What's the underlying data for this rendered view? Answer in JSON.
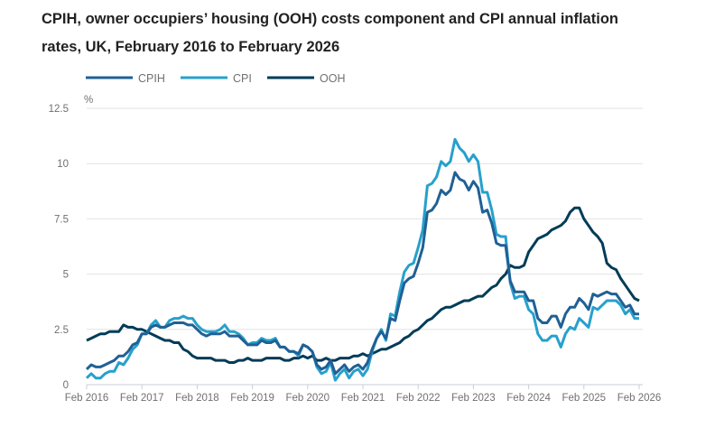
{
  "chart_data": {
    "type": "line",
    "title": "CPIH, owner occupiers’ housing (OOH) costs component and CPI annual inflation rates, UK, February 2016 to February 2026",
    "ylabel": "%",
    "xlabel": "",
    "ylim": [
      0,
      12.5
    ],
    "yticks": [
      "0",
      "2.5",
      "5",
      "7.5",
      "10",
      "12.5"
    ],
    "xticks": [
      "Feb 2016",
      "Feb 2017",
      "Feb 2018",
      "Feb 2019",
      "Feb 2020",
      "Feb 2021",
      "Feb 2022",
      "Feb 2023",
      "Feb 2024",
      "Feb 2025",
      "Feb 2026"
    ],
    "x_start": "Feb 2016",
    "x_end": "Feb 2026",
    "x_frequency": "monthly",
    "grid": true,
    "legend_position": "top-left",
    "series": [
      {
        "name": "CPIH",
        "color": "#206095",
        "values": [
          0.7,
          0.9,
          0.8,
          0.8,
          0.9,
          1.0,
          1.1,
          1.3,
          1.3,
          1.5,
          1.8,
          1.9,
          2.3,
          2.3,
          2.6,
          2.7,
          2.6,
          2.6,
          2.7,
          2.8,
          2.8,
          2.8,
          2.7,
          2.7,
          2.5,
          2.3,
          2.2,
          2.3,
          2.3,
          2.3,
          2.4,
          2.2,
          2.2,
          2.2,
          2.0,
          1.8,
          1.8,
          1.8,
          2.0,
          1.9,
          1.9,
          2.0,
          1.7,
          1.7,
          1.5,
          1.5,
          1.4,
          1.8,
          1.7,
          1.5,
          0.9,
          0.7,
          0.8,
          1.1,
          0.5,
          0.7,
          0.9,
          0.6,
          0.8,
          0.9,
          0.7,
          1.0,
          1.6,
          2.1,
          2.4,
          2.1,
          3.0,
          2.9,
          3.8,
          4.6,
          4.8,
          4.9,
          5.5,
          6.2,
          7.8,
          7.9,
          8.2,
          8.8,
          8.6,
          8.8,
          9.6,
          9.3,
          9.2,
          8.8,
          9.2,
          8.9,
          7.8,
          7.9,
          7.3,
          6.4,
          6.3,
          6.3,
          4.7,
          4.2,
          4.2,
          4.2,
          3.8,
          3.8,
          3.0,
          2.8,
          2.8,
          3.1,
          3.1,
          2.6,
          3.2,
          3.5,
          3.5,
          3.9,
          3.7,
          3.4,
          4.1,
          4.0,
          4.1,
          4.2,
          4.1,
          4.1,
          3.8,
          3.5,
          3.6,
          3.2,
          3.2
        ]
      },
      {
        "name": "CPI",
        "color": "#27a0cc",
        "values": [
          0.3,
          0.5,
          0.3,
          0.3,
          0.5,
          0.6,
          0.6,
          1.0,
          0.9,
          1.2,
          1.6,
          1.8,
          2.3,
          2.3,
          2.7,
          2.9,
          2.6,
          2.6,
          2.9,
          3.0,
          3.0,
          3.1,
          3.0,
          3.0,
          2.7,
          2.5,
          2.4,
          2.4,
          2.4,
          2.5,
          2.7,
          2.4,
          2.4,
          2.3,
          2.1,
          1.8,
          1.9,
          1.9,
          2.1,
          2.0,
          2.0,
          2.1,
          1.7,
          1.7,
          1.5,
          1.5,
          1.3,
          1.8,
          1.7,
          1.5,
          0.8,
          0.5,
          0.6,
          1.0,
          0.2,
          0.5,
          0.7,
          0.3,
          0.6,
          0.7,
          0.4,
          0.7,
          1.5,
          2.1,
          2.5,
          2.0,
          3.2,
          3.1,
          4.2,
          5.1,
          5.4,
          5.5,
          6.2,
          7.0,
          9.0,
          9.1,
          9.4,
          10.1,
          9.9,
          10.1,
          11.1,
          10.7,
          10.5,
          10.1,
          10.4,
          10.1,
          8.7,
          8.7,
          7.9,
          6.8,
          6.7,
          6.7,
          4.6,
          3.9,
          4.0,
          4.0,
          3.4,
          3.2,
          2.3,
          2.0,
          2.0,
          2.2,
          2.2,
          1.7,
          2.3,
          2.6,
          2.5,
          3.0,
          2.8,
          2.6,
          3.5,
          3.4,
          3.6,
          3.8,
          3.8,
          3.8,
          3.6,
          3.2,
          3.4,
          3.0,
          3.0
        ]
      },
      {
        "name": "OOH",
        "color": "#003c57",
        "values": [
          2.0,
          2.1,
          2.2,
          2.3,
          2.3,
          2.4,
          2.4,
          2.4,
          2.7,
          2.6,
          2.6,
          2.5,
          2.5,
          2.4,
          2.3,
          2.2,
          2.1,
          2.0,
          2.0,
          1.9,
          1.9,
          1.6,
          1.5,
          1.3,
          1.2,
          1.2,
          1.2,
          1.2,
          1.1,
          1.1,
          1.1,
          1.0,
          1.0,
          1.1,
          1.1,
          1.2,
          1.1,
          1.1,
          1.1,
          1.2,
          1.2,
          1.2,
          1.2,
          1.1,
          1.1,
          1.2,
          1.2,
          1.3,
          1.2,
          1.3,
          1.1,
          1.1,
          1.2,
          1.1,
          1.1,
          1.2,
          1.2,
          1.2,
          1.3,
          1.3,
          1.4,
          1.3,
          1.4,
          1.5,
          1.6,
          1.6,
          1.7,
          1.8,
          1.9,
          2.1,
          2.2,
          2.4,
          2.5,
          2.7,
          2.9,
          3.0,
          3.2,
          3.4,
          3.5,
          3.5,
          3.6,
          3.7,
          3.8,
          3.8,
          3.9,
          4.0,
          4.0,
          4.2,
          4.4,
          4.5,
          4.8,
          5.0,
          5.4,
          5.3,
          5.3,
          5.4,
          6.0,
          6.3,
          6.6,
          6.7,
          6.8,
          7.0,
          7.1,
          7.2,
          7.4,
          7.8,
          8.0,
          8.0,
          7.5,
          7.2,
          6.9,
          6.7,
          6.4,
          5.5,
          5.3,
          5.2,
          4.8,
          4.5,
          4.2,
          3.9,
          3.8
        ]
      }
    ]
  }
}
